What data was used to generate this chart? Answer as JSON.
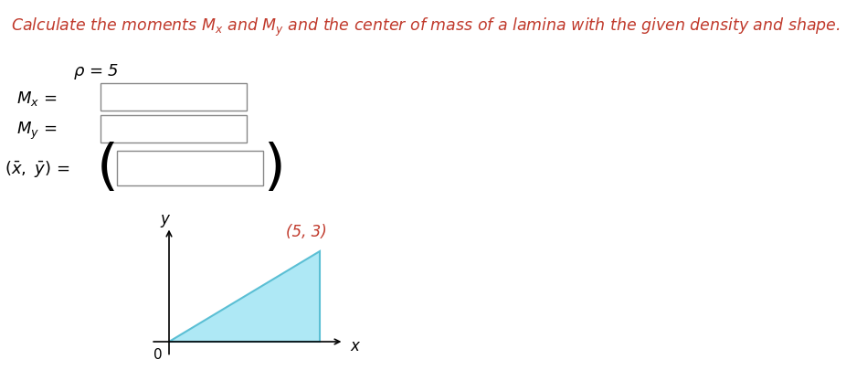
{
  "bg_color": "#ffffff",
  "title_text": "Calculate the moments $M_x$ and $M_y$ and the center of mass of a lamina with the given density and shape.",
  "title_color": "#c0392b",
  "title_fontsize": 12.5,
  "rho_text": "$\\rho$ = 5",
  "rho_color": "#000000",
  "rho_fontsize": 13,
  "label_color": "#000000",
  "label_fontsize": 13,
  "box_edge_color": "#888888",
  "box_face_color": "#ffffff",
  "point_label": "(5, 3)",
  "point_color": "#c0392b",
  "triangle_fill_color": "#aee8f5",
  "triangle_edge_color": "#5bbfd4",
  "axis_color": "#000000"
}
